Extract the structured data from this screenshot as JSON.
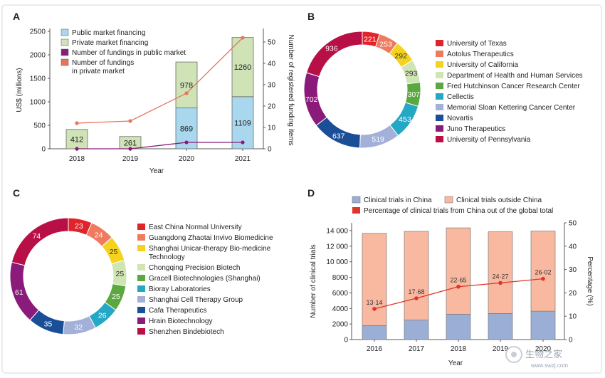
{
  "watermark": {
    "text": "生物之家",
    "url": "www.swzj.com"
  },
  "panelA": {
    "letter": "A",
    "chart_data": {
      "type": "bar",
      "categories": [
        "2018",
        "2019",
        "2020",
        "2021"
      ],
      "series": [
        {
          "name": "Public market financing",
          "values": [
            0,
            0,
            869,
            1109
          ],
          "color": "#a9d8ee",
          "labels": [
            "",
            "",
            "869",
            "1109"
          ]
        },
        {
          "name": "Private market financing",
          "values": [
            412,
            261,
            978,
            1260
          ],
          "color": "#cfe3b7",
          "labels": [
            "412",
            "261",
            "978",
            "1260"
          ]
        }
      ],
      "lines": [
        {
          "name": "Number of fundings in public market",
          "values": [
            0,
            0,
            3,
            3
          ],
          "color": "#8a1b7a",
          "axis": "right"
        },
        {
          "name": "Number of fundings\nin private market",
          "values": [
            12,
            13,
            26,
            52
          ],
          "color": "#e8735a",
          "axis": "right"
        }
      ],
      "xlabel": "Year",
      "ylabel": "US$ (millions)",
      "ylabel_right": "Number of registered funding items",
      "ylim": [
        0,
        2500
      ],
      "yticks": [
        "0",
        "500",
        "1000",
        "1500",
        "2000",
        "2500"
      ],
      "ylim_right": [
        0,
        55
      ],
      "yticks_right": [
        "0",
        "10",
        "20",
        "30",
        "40",
        "50"
      ]
    }
  },
  "panelB": {
    "letter": "B",
    "chart_data": {
      "type": "pie",
      "donut": true,
      "categories": [
        "University of Texas",
        "Aotolus Therapeutics",
        "University of California",
        "Department of Health and Human Services",
        "Fred Hutchinson Cancer Research Center",
        "Cellectis",
        "Memorial Sloan Kettering Cancer Center",
        "Novartis",
        "Juno Therapeutics",
        "University of Pennsylvania"
      ],
      "values": [
        221,
        253,
        292,
        293,
        307,
        453,
        519,
        637,
        702,
        936
      ],
      "labels": [
        "221",
        "253",
        "292",
        "293",
        "307",
        "453",
        "519",
        "637",
        "702",
        "936"
      ],
      "colors": [
        "#e0242b",
        "#ef7a5e",
        "#f5d21e",
        "#cfe5b4",
        "#5aa83f",
        "#25a7c6",
        "#a3b0d7",
        "#1a4f97",
        "#8a1b7a",
        "#b80f46"
      ]
    }
  },
  "panelC": {
    "letter": "C",
    "chart_data": {
      "type": "pie",
      "donut": true,
      "categories": [
        "East China Normal University",
        "Guangdong Zhaotai Invivo Biomedicine",
        "Shanghai Unicar-therapy Bio-medicine\nTechnology",
        "Chongqing Precision Biotech",
        "Gracell Biotechnologies (Shanghai)",
        "Bioray Laboratories",
        "Shanghai Cell Therapy Group",
        "Cafa Therapeutics",
        "Hrain Biotechnology",
        "Shenzhen Bindebiotech"
      ],
      "values": [
        23,
        24,
        25,
        25,
        25,
        26,
        32,
        35,
        61,
        74
      ],
      "labels": [
        "23",
        "24",
        "25",
        "25",
        "25",
        "26",
        "32",
        "35",
        "61",
        "74"
      ],
      "colors": [
        "#e0242b",
        "#ef7a5e",
        "#f5d21e",
        "#cfe5b4",
        "#5aa83f",
        "#25a7c6",
        "#a3b0d7",
        "#1a4f97",
        "#8a1b7a",
        "#b80f46"
      ]
    }
  },
  "panelD": {
    "letter": "D",
    "chart_data": {
      "type": "bar",
      "categories": [
        "2016",
        "2017",
        "2018",
        "2019",
        "2020"
      ],
      "series": [
        {
          "name": "Clinical trials in China",
          "values": [
            1800,
            2500,
            3250,
            3350,
            3650
          ],
          "color": "#9aaed6"
        },
        {
          "name": "Clinical trials outside China",
          "values": [
            11850,
            11400,
            11100,
            10500,
            10300
          ],
          "color": "#f8b9a0"
        }
      ],
      "lines": [
        {
          "name": "Percentage of clinical trials from China out of the global total",
          "values": [
            13.14,
            17.68,
            22.65,
            24.27,
            26.02
          ],
          "labels": [
            "13·14",
            "17·68",
            "22·65",
            "24·27",
            "26·02"
          ],
          "color": "#e0352a",
          "axis": "right"
        }
      ],
      "xlabel": "Year",
      "ylabel": "Number of clinical trials",
      "ylabel_right": "Percentage (%)",
      "ylim": [
        0,
        15000
      ],
      "yticks": [
        "0",
        "2000",
        "4000",
        "6000",
        "8000",
        "10 000",
        "12 000",
        "14 000"
      ],
      "ylim_right": [
        0,
        50
      ],
      "yticks_right": [
        "0",
        "10",
        "20",
        "30",
        "40",
        "50"
      ]
    }
  }
}
